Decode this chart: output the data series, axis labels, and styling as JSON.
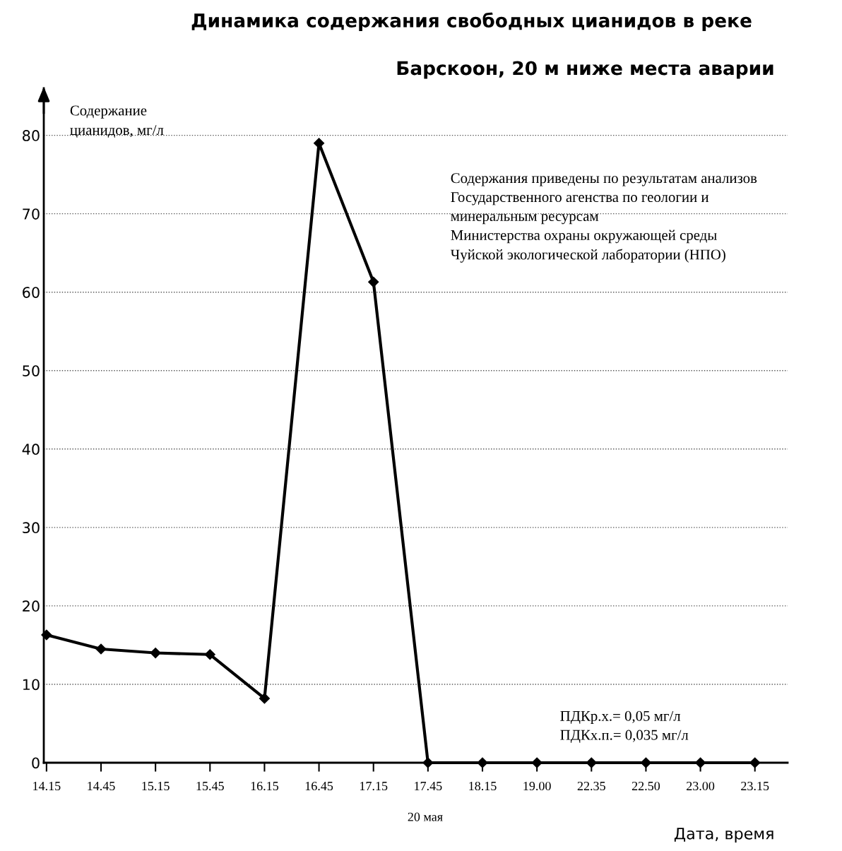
{
  "chart_data": {
    "type": "line",
    "title": "Динамика содержания свободных цианидов в реке",
    "subtitle": "Барскоон, 20 м ниже места аварии",
    "ylabel": "Содержание\nцианидов, мг/л",
    "xlabel": "Дата, время",
    "categories": [
      "14.15",
      "14.45",
      "15.15",
      "15.45",
      "16.15",
      "16.45",
      "17.15",
      "17.45",
      "18.15",
      "19.00",
      "22.35",
      "22.50",
      "23.00",
      "23.15"
    ],
    "series": [
      {
        "color": "#000000",
        "values": [
          16.3,
          14.5,
          14.0,
          13.8,
          8.2,
          79,
          61.3,
          0,
          0,
          0,
          0,
          0,
          0,
          0
        ]
      }
    ],
    "ylim": [
      0,
      86
    ],
    "yticks": [
      0,
      10,
      20,
      30,
      40,
      50,
      60,
      70,
      80
    ],
    "grid": "y",
    "marker": "diamond",
    "line_style": "solid",
    "legend": false,
    "annotations": [
      "Содержания приведены по результатам анализов\nГосударственного агенства по геологии и\nминеральным ресурсам\nМинистерства охраны окружающей среды\nЧуйской экологической лаборатории (НПО)",
      "ПДКр.х.= 0,05 мг/л\nПДКх.п.= 0,035 мг/л",
      "20 мая"
    ]
  }
}
